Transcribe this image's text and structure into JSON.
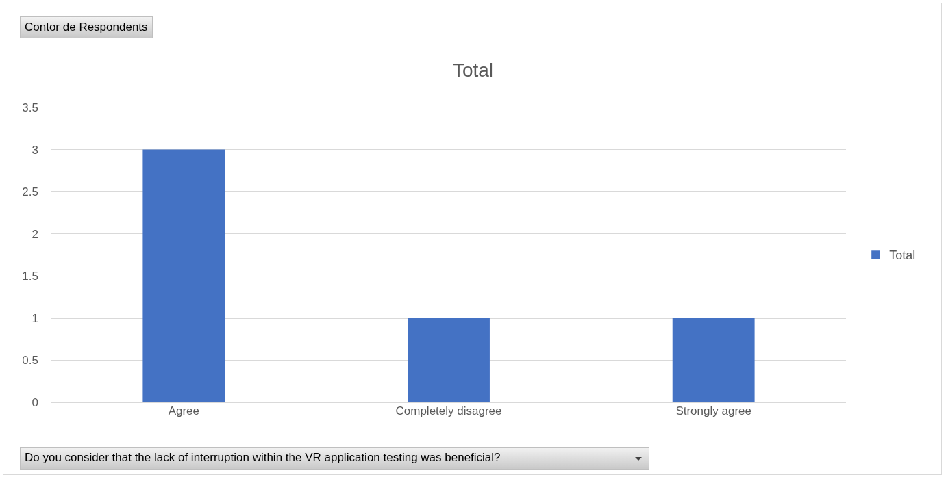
{
  "chart_data": {
    "type": "bar",
    "title": "Total",
    "categories": [
      "Agree",
      "Completely disagree",
      "Strongly agree"
    ],
    "series": [
      {
        "name": "Total",
        "color": "#4472c4",
        "values": [
          3,
          1,
          1
        ]
      }
    ],
    "ylim": [
      0,
      3.5
    ],
    "yticks": [
      0,
      0.5,
      1,
      1.5,
      2,
      2.5,
      3,
      3.5
    ],
    "grid": "y",
    "legend": "right",
    "annotations": [
      "Contor de Respondents",
      "Do you consider that the lack of interruption within the VR application testing was beneficial?"
    ]
  }
}
